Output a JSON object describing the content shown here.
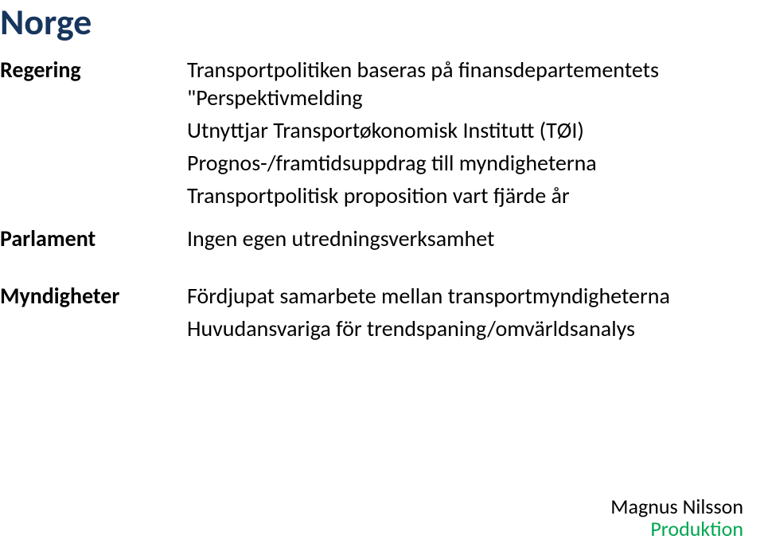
{
  "title": "Norge",
  "sections": [
    {
      "label": "Regering",
      "lines": [
        "Transportpolitiken baseras på finansdepartementets \"Perspektivmelding",
        "Utnyttjar Transportøkonomisk Institutt (TØI)",
        "Prognos-/framtidsuppdrag till myndigheterna",
        "Transportpolitisk proposition vart fjärde år"
      ]
    },
    {
      "label": "Parlament",
      "lines": [
        "Ingen egen utredningsverksamhet"
      ]
    },
    {
      "label": "Myndigheter",
      "lines": [
        "Fördjupat samarbete mellan transportmyndigheterna",
        "Huvudansvariga för trendspaning/omvärldsanalys"
      ]
    }
  ],
  "footer": {
    "name": "Magnus Nilsson",
    "sub": "Produktion"
  },
  "colors": {
    "title": "#17365d",
    "text": "#000000",
    "footer_sub": "#00a64f",
    "background": "#ffffff"
  },
  "typography": {
    "title_fontsize_pt": 34,
    "body_fontsize_pt": 21,
    "footer_fontsize_pt": 20,
    "title_weight": 700,
    "label_weight": 700,
    "body_weight": 400
  }
}
